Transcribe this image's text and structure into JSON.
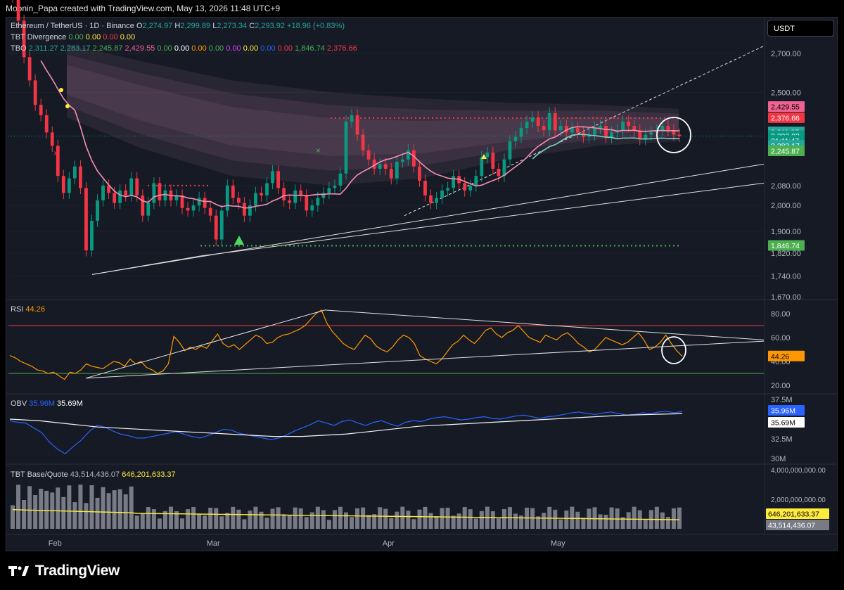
{
  "header": {
    "caption": "Moonin_Papa created with TradingView.com, May 13, 2026 11:48 UTC+9"
  },
  "price_axis_unit": "USDT",
  "legend": {
    "symbol": "Ethereum / TetherUS · 1D · Binance",
    "ohlc": [
      {
        "k": "O",
        "v": "2,274.97"
      },
      {
        "k": "H",
        "v": "2,299.89"
      },
      {
        "k": "L",
        "v": "2,273.34"
      },
      {
        "k": "C",
        "v": "2,293.92"
      }
    ],
    "change": "+18.96 (+0.83%)",
    "tbt_div": {
      "name": "TBT Divergence",
      "values": [
        "0.00",
        "0.00",
        "0.00",
        "0.00"
      ]
    },
    "tbo": {
      "name": "TBO",
      "values": [
        "2,311.27",
        "2,283.17",
        "2,245.87",
        "2,429.55",
        "0.00",
        "0.00",
        "0.00",
        "0.00",
        "0.00",
        "0.00",
        "0.00",
        "0.00",
        "1,846.74",
        "2,376.66"
      ]
    }
  },
  "rsi_panel": {
    "name": "RSI",
    "value": "44.26"
  },
  "obv_panel": {
    "name": "OBV",
    "value1": "35.96M",
    "value2": "35.69M"
  },
  "vol_panel": {
    "name": "TBT Base/Quote",
    "value1": "43,514,436.07",
    "value2": "646,201,633.37"
  },
  "price_badges": [
    {
      "text": "2,429.55",
      "price": 2429.55,
      "bg": "#f06292",
      "fg": "#000000"
    },
    {
      "text": "2,376.66",
      "price": 2376.66,
      "bg": "#f23645",
      "fg": "#ffffff"
    },
    {
      "text": "2,311.27",
      "price": 2311.27,
      "bg": "#26a69a",
      "fg": "#ffffff"
    },
    {
      "text": "2,293.92",
      "price": 2293.92,
      "bg": "#089981",
      "fg": "#ffffff"
    },
    {
      "text": "21:11:47",
      "price": 2272,
      "bg": "#089981",
      "fg": "#ffffff"
    },
    {
      "text": "2,283.17",
      "price": 2250,
      "bg": "#26a69a",
      "fg": "#ffffff"
    },
    {
      "text": "2,245.87",
      "price": 2226,
      "bg": "#4caf50",
      "fg": "#ffffff"
    },
    {
      "text": "1,846.74",
      "price": 1846.74,
      "bg": "#4caf50",
      "fg": "#ffffff"
    }
  ],
  "rsi_badge": {
    "text": "44.26",
    "value": 44.26,
    "bg": "#ff9800",
    "fg": "#000000"
  },
  "obv_badges": [
    {
      "text": "35.96M",
      "value": 35.96,
      "bg": "#2962ff",
      "fg": "#ffffff"
    },
    {
      "text": "35.69M",
      "value": 35.69,
      "bg": "#ffffff",
      "fg": "#000000"
    }
  ],
  "vol_badges": [
    {
      "text": "646,201,633.37",
      "value": 646201633.37,
      "bg": "#ffeb3b",
      "fg": "#000000"
    },
    {
      "text": "43,514,436.07",
      "value": 43514436.07,
      "bg": "#787b86",
      "fg": "#ffffff"
    }
  ],
  "logo_text": "TradingView",
  "chart_data": {
    "type": "candlestick",
    "price_ticks": [
      "2,700.00",
      "2,500.00",
      "2,080.00",
      "2,000.00",
      "1,900.00",
      "1,820.00",
      "1,740.00",
      "1,670.00"
    ],
    "rsi_ticks": [
      "80.00",
      "60.00",
      "40.00",
      "20.00"
    ],
    "obv_ticks": [
      "37.5M",
      "32.5M",
      "30M"
    ],
    "vol_ticks": [
      "4,000,000,000.00",
      "2,000,000,000.00"
    ],
    "x_labels": [
      "Feb",
      "Mar",
      "Apr",
      "May"
    ],
    "x_label_days": [
      8,
      36,
      67,
      97
    ],
    "price_range": [
      1670,
      2700
    ],
    "rsi_range": [
      20,
      80
    ],
    "rsi_levels": [
      70,
      30
    ],
    "obv_range": [
      30,
      37.5
    ],
    "closes": [
      3020,
      2880,
      2680,
      2560,
      2440,
      2390,
      2310,
      2250,
      2120,
      2050,
      2110,
      2160,
      2070,
      1830,
      1940,
      2020,
      2080,
      2050,
      2010,
      2060,
      2040,
      2110,
      2040,
      1960,
      2010,
      2090,
      2020,
      2060,
      2020,
      2040,
      1990,
      1980,
      2000,
      2030,
      1990,
      1960,
      1870,
      1980,
      2080,
      2030,
      2010,
      1960,
      2000,
      2050,
      2040,
      2090,
      2140,
      2070,
      2020,
      2010,
      2060,
      2040,
      1980,
      2000,
      2030,
      2050,
      2070,
      2080,
      2130,
      2360,
      2390,
      2300,
      2230,
      2190,
      2150,
      2170,
      2150,
      2110,
      2180,
      2190,
      2230,
      2160,
      2100,
      2040,
      2010,
      2030,
      2060,
      2070,
      2120,
      2090,
      2060,
      2080,
      2120,
      2200,
      2220,
      2150,
      2120,
      2190,
      2270,
      2290,
      2330,
      2360,
      2380,
      2340,
      2320,
      2400,
      2320,
      2340,
      2310,
      2330,
      2310,
      2290,
      2300,
      2330,
      2340,
      2290,
      2310,
      2320,
      2360,
      2340,
      2320,
      2280,
      2300,
      2310,
      2320,
      2340,
      2320,
      2300,
      2293.92
    ],
    "rsi": [
      45,
      43,
      40,
      38,
      36,
      33,
      32,
      30,
      31,
      28,
      25,
      31,
      30,
      33,
      38,
      36,
      35,
      34,
      37,
      40,
      39,
      36,
      42,
      38,
      40,
      35,
      33,
      30,
      32,
      38,
      61,
      56,
      49,
      52,
      50,
      53,
      51,
      57,
      63,
      55,
      52,
      54,
      50,
      54,
      58,
      62,
      60,
      55,
      56,
      60,
      62,
      63,
      65,
      67,
      70,
      75,
      80,
      83,
      72,
      65,
      60,
      55,
      52,
      50,
      56,
      62,
      59,
      53,
      50,
      48,
      52,
      58,
      62,
      60,
      55,
      45,
      42,
      40,
      38,
      42,
      48,
      54,
      57,
      62,
      58,
      55,
      60,
      66,
      68,
      63,
      60,
      64,
      66,
      70,
      65,
      60,
      58,
      56,
      62,
      60,
      58,
      62,
      64,
      60,
      55,
      52,
      48,
      50,
      55,
      60,
      58,
      56,
      54,
      56,
      60,
      64,
      58,
      50,
      52,
      56,
      62,
      55,
      49,
      44.26
    ],
    "obv": [
      34.8,
      34.6,
      34.5,
      33.9,
      33.3,
      32.1,
      31.2,
      30.6,
      31.5,
      32.3,
      33.4,
      34.2,
      34.0,
      33.5,
      33.1,
      32.9,
      32.6,
      32.6,
      32.8,
      33.0,
      33.2,
      33.4,
      33.1,
      32.8,
      32.6,
      32.9,
      33.3,
      33.7,
      33.6,
      33.2,
      33.0,
      32.8,
      32.6,
      32.4,
      32.6,
      33.0,
      33.5,
      33.9,
      34.3,
      34.8,
      34.5,
      34.2,
      34.7,
      34.9,
      34.5,
      34.2,
      34.6,
      34.8,
      34.4,
      34.1,
      34.6,
      34.8,
      34.7,
      35.0,
      35.2,
      35.3,
      35.1,
      34.9,
      35.0,
      35.2,
      35.3,
      35.1,
      35.0,
      35.2,
      35.4,
      35.5,
      35.3,
      35.1,
      35.3,
      35.4,
      35.6,
      35.8,
      35.9,
      35.7,
      35.6,
      35.8,
      35.9,
      35.7,
      35.5,
      35.6,
      35.8,
      35.7,
      35.9,
      36.0,
      35.8,
      35.96
    ],
    "obv_ma": [
      35.0,
      34.9,
      34.8,
      34.6,
      34.4,
      34.2,
      34.0,
      33.9,
      33.8,
      33.7,
      33.6,
      33.5,
      33.4,
      33.3,
      33.2,
      33.1,
      33.0,
      32.9,
      32.8,
      32.8,
      32.8,
      32.9,
      33.0,
      33.1,
      33.3,
      33.5,
      33.7,
      33.9,
      34.1,
      34.2,
      34.3,
      34.4,
      34.5,
      34.6,
      34.7,
      34.8,
      34.9,
      35.0,
      35.1,
      35.2,
      35.3,
      35.4,
      35.5,
      35.55,
      35.6,
      35.65,
      35.69
    ],
    "volume_note": "daily volume bars with TBT quote-volume average line"
  }
}
